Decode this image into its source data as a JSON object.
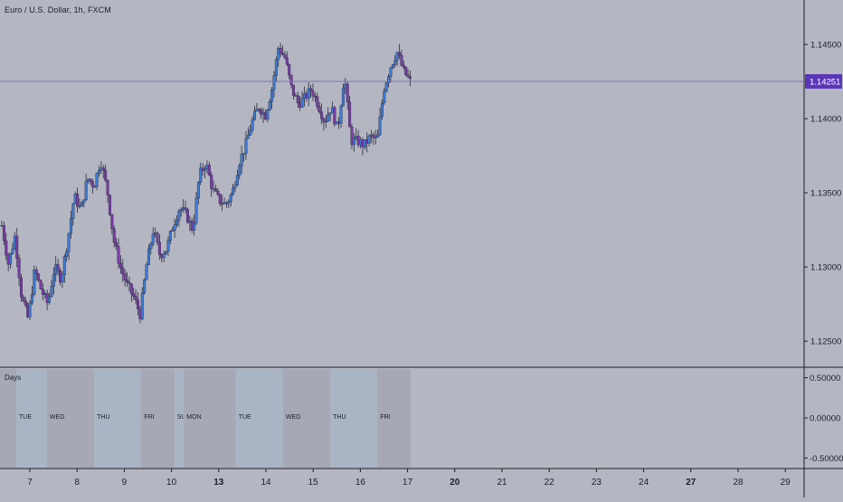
{
  "chart_data": {
    "type": "candlestick",
    "title": "Euro / U.S. Dollar, 1h, FXCM",
    "price_axis": {
      "ticks": [
        "1.14500",
        "1.14000",
        "1.13500",
        "1.13000",
        "1.12500"
      ],
      "tick_values": [
        1.145,
        1.14,
        1.135,
        1.13,
        1.125
      ],
      "ylim": [
        1.1233,
        1.148
      ]
    },
    "current_price": {
      "label": "1.14251",
      "value": 1.14251,
      "line_color": "#7a6fc9",
      "badge_color": "#5b35b8"
    },
    "x_axis": {
      "date_labels": [
        "7",
        "8",
        "9",
        "10",
        "13",
        "14",
        "15",
        "16",
        "17",
        "20",
        "21",
        "22",
        "23",
        "24",
        "27",
        "28",
        "29"
      ],
      "bold_labels": [
        "13",
        "20",
        "27"
      ]
    },
    "candles": {
      "bull_color": "#3b7bd6",
      "bear_color": "#7b3aa8",
      "wick_color": "#2a2a40",
      "close_path": [
        [
          0,
          1.1328
        ],
        [
          1,
          1.1302
        ],
        [
          2,
          1.1321
        ],
        [
          3,
          1.128
        ],
        [
          4,
          1.1265
        ],
        [
          5,
          1.1298
        ],
        [
          6,
          1.1284
        ],
        [
          7,
          1.1275
        ],
        [
          8,
          1.13
        ],
        [
          9,
          1.1292
        ],
        [
          10,
          1.1318
        ],
        [
          11,
          1.1348
        ],
        [
          12,
          1.1338
        ],
        [
          13,
          1.136
        ],
        [
          14,
          1.1355
        ],
        [
          15,
          1.1372
        ],
        [
          16,
          1.1352
        ],
        [
          17,
          1.1318
        ],
        [
          18,
          1.13
        ],
        [
          19,
          1.1288
        ],
        [
          20,
          1.128
        ],
        [
          21,
          1.1268
        ],
        [
          22,
          1.1302
        ],
        [
          23,
          1.1325
        ],
        [
          24,
          1.1308
        ],
        [
          25,
          1.1312
        ],
        [
          26,
          1.1328
        ],
        [
          27,
          1.134
        ],
        [
          28,
          1.1335
        ],
        [
          29,
          1.1325
        ],
        [
          30,
          1.1362
        ],
        [
          31,
          1.137
        ],
        [
          32,
          1.1352
        ],
        [
          33,
          1.1345
        ],
        [
          34,
          1.1342
        ],
        [
          35,
          1.135
        ],
        [
          36,
          1.137
        ],
        [
          37,
          1.1382
        ],
        [
          38,
          1.1398
        ],
        [
          39,
          1.1408
        ],
        [
          40,
          1.1402
        ],
        [
          41,
          1.142
        ],
        [
          42,
          1.1448
        ],
        [
          43,
          1.1441
        ],
        [
          44,
          1.142
        ],
        [
          45,
          1.141
        ],
        [
          46,
          1.1414
        ],
        [
          47,
          1.142
        ],
        [
          48,
          1.141
        ],
        [
          49,
          1.1398
        ],
        [
          50,
          1.1408
        ],
        [
          51,
          1.1392
        ],
        [
          52,
          1.143
        ],
        [
          53,
          1.1385
        ],
        [
          54,
          1.1385
        ],
        [
          55,
          1.1382
        ],
        [
          56,
          1.1388
        ],
        [
          57,
          1.1385
        ],
        [
          58,
          1.142
        ],
        [
          59,
          1.1435
        ],
        [
          60,
          1.1445
        ],
        [
          61,
          1.1432
        ],
        [
          62,
          1.1425
        ]
      ]
    },
    "sessions": {
      "label": "Days",
      "axis_ticks": [
        "0.50000",
        "0.00000",
        "-0.50000"
      ],
      "tick_values": [
        0.5,
        0.0,
        -0.5
      ],
      "ylim": [
        -0.62,
        0.62
      ],
      "days": [
        {
          "label": "",
          "start": 0.0,
          "end": 0.35,
          "color": "#a6a8b6"
        },
        {
          "label": "TUE",
          "start": 0.35,
          "end": 1.0,
          "color": "#a9b5c4"
        },
        {
          "label": "WED",
          "start": 1.0,
          "end": 2.0,
          "color": "#a6a8b6"
        },
        {
          "label": "THU",
          "start": 2.0,
          "end": 3.0,
          "color": "#a9b5c4"
        },
        {
          "label": "FRI",
          "start": 3.0,
          "end": 3.7,
          "color": "#a6a8b6"
        },
        {
          "label": "SUN",
          "start": 3.7,
          "end": 3.9,
          "color": "#a9b5c4"
        },
        {
          "label": "MON",
          "start": 3.9,
          "end": 5.0,
          "color": "#a6a8b6"
        },
        {
          "label": "TUE",
          "start": 5.0,
          "end": 6.0,
          "color": "#a9b5c4"
        },
        {
          "label": "WED",
          "start": 6.0,
          "end": 7.0,
          "color": "#a6a8b6"
        },
        {
          "label": "THU",
          "start": 7.0,
          "end": 8.0,
          "color": "#a9b5c4"
        },
        {
          "label": "FRI",
          "start": 8.0,
          "end": 8.7,
          "color": "#a6a8b6"
        }
      ]
    },
    "colors": {
      "background": "#b4b7c1",
      "axis_text": "#1e1e2a",
      "separator": "#1e1e2a"
    }
  }
}
